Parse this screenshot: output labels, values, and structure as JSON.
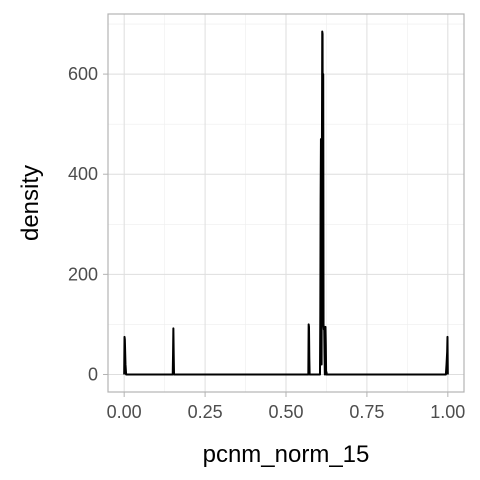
{
  "chart_data": {
    "type": "line",
    "title": "",
    "xlabel": "pcnm_norm_15",
    "ylabel": "density",
    "xlim": [
      -0.05,
      1.05
    ],
    "ylim": [
      -35,
      720
    ],
    "x_ticks": [
      {
        "value": 0,
        "label": "0.00"
      },
      {
        "value": 0.25,
        "label": "0.25"
      },
      {
        "value": 0.5,
        "label": "0.50"
      },
      {
        "value": 0.75,
        "label": "0.75"
      },
      {
        "value": 1,
        "label": "1.00"
      }
    ],
    "x_minor_ticks": [
      0.125,
      0.375,
      0.625,
      0.875
    ],
    "y_ticks": [
      {
        "value": 0,
        "label": "0"
      },
      {
        "value": 200,
        "label": "200"
      },
      {
        "value": 400,
        "label": "400"
      },
      {
        "value": 600,
        "label": "600"
      }
    ],
    "y_minor_ticks": [
      100,
      300,
      500,
      700
    ],
    "grid": true,
    "series": [
      {
        "x": [
          0,
          0.001,
          0.002,
          0.004,
          0.006,
          0.15,
          0.151,
          0.152,
          0.153,
          0.154,
          0.569,
          0.57,
          0.571,
          0.572,
          0.573,
          0.605,
          0.606,
          0.607,
          0.608,
          0.609,
          0.61,
          0.611,
          0.612,
          0.613,
          0.614,
          0.615,
          0.616,
          0.617,
          0.618,
          0.619,
          0.62,
          0.621,
          0.622,
          0.623,
          0.624,
          0.625,
          0.626,
          0.627,
          0.994,
          0.996,
          0.998,
          0.999,
          1.0
        ],
        "y": [
          0,
          75,
          70,
          20,
          0,
          0,
          40,
          92,
          40,
          0,
          0,
          100,
          95,
          35,
          0,
          0,
          120,
          350,
          470,
          120,
          20,
          450,
          685,
          680,
          200,
          600,
          100,
          90,
          95,
          40,
          0,
          50,
          95,
          60,
          0,
          5,
          0,
          0,
          0,
          20,
          45,
          75,
          0
        ]
      }
    ]
  }
}
